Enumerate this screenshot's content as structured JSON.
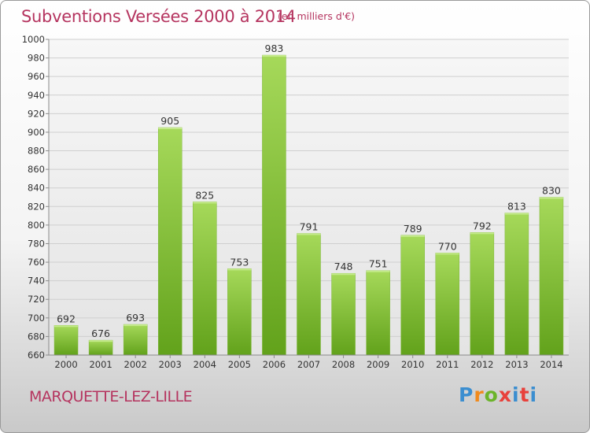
{
  "header": {
    "title": "Subventions Versées 2000 à 2014",
    "unit_note": "(en milliers d'€)"
  },
  "footer": {
    "town": "MARQUETTE-LEZ-LILLE",
    "brand": "Proxiti"
  },
  "colors": {
    "title": "#b5345f",
    "bar_top": "#a6d95a",
    "bar_bottom": "#62a21b",
    "brand_p": "#3b8ed0",
    "brand_r": "#f08a1c",
    "brand_o": "#6bb42a",
    "brand_x": "#e8413b",
    "brand_i": "#3b8ed0"
  },
  "chart_data": {
    "type": "bar",
    "title": "Subventions Versées 2000 à 2014",
    "categories": [
      "2000",
      "2001",
      "2002",
      "2003",
      "2004",
      "2005",
      "2006",
      "2007",
      "2008",
      "2009",
      "2010",
      "2011",
      "2012",
      "2013",
      "2014"
    ],
    "values": [
      692,
      676,
      693,
      905,
      825,
      753,
      983,
      791,
      748,
      751,
      789,
      770,
      792,
      813,
      830
    ],
    "ylim": [
      660,
      1000
    ],
    "yticks": [
      660,
      680,
      700,
      720,
      740,
      760,
      780,
      800,
      820,
      840,
      860,
      880,
      900,
      920,
      940,
      960,
      980,
      1000
    ],
    "grid": true,
    "xlabel": "",
    "ylabel": ""
  }
}
